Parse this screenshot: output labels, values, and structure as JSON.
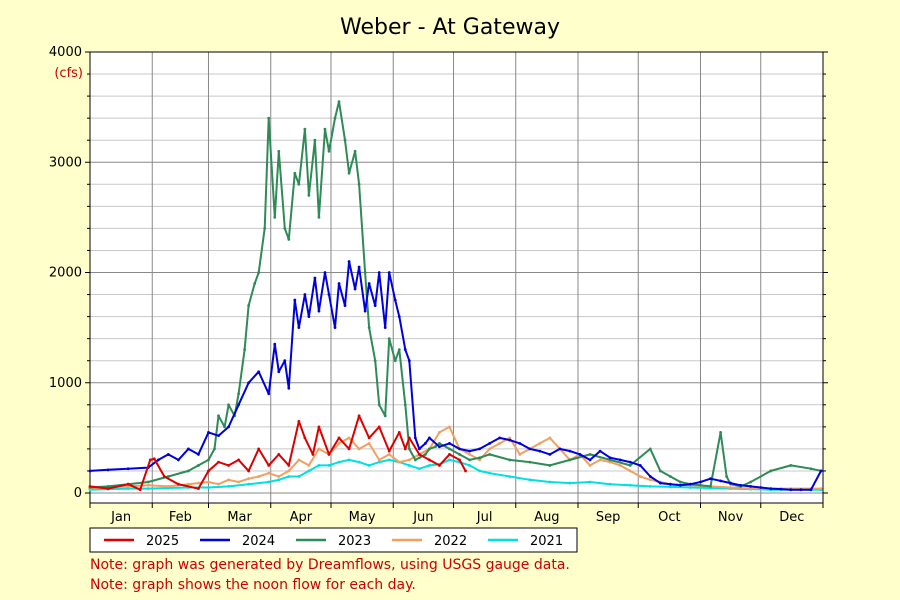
{
  "chart_data": {
    "type": "line",
    "title": "Weber - At Gateway",
    "ylabel": "(cfs)",
    "xlabel": "",
    "ylim": [
      0,
      4000
    ],
    "y_ticks": [
      0,
      1000,
      2000,
      3000,
      4000
    ],
    "categories": [
      "Jan",
      "Feb",
      "Mar",
      "Apr",
      "May",
      "Jun",
      "Jul",
      "Aug",
      "Sep",
      "Oct",
      "Nov",
      "Dec"
    ],
    "grid": true,
    "legend_placement": "bottom-left",
    "x_units": "day of year",
    "series": [
      {
        "name": "2025",
        "color": "#dd0000",
        "x": [
          1,
          10,
          20,
          26,
          31,
          33,
          38,
          45,
          55,
          60,
          65,
          70,
          75,
          80,
          85,
          90,
          95,
          100,
          105,
          108,
          112,
          115,
          120,
          125,
          130,
          135,
          140,
          145,
          150,
          155,
          158,
          160,
          165,
          170,
          175,
          180,
          185,
          188
        ],
        "values": [
          60,
          40,
          80,
          30,
          300,
          310,
          150,
          80,
          40,
          200,
          280,
          250,
          300,
          200,
          400,
          250,
          350,
          250,
          650,
          500,
          350,
          600,
          350,
          500,
          400,
          700,
          500,
          600,
          380,
          550,
          400,
          500,
          350,
          300,
          250,
          350,
          300,
          200
        ]
      },
      {
        "name": "2024",
        "color": "#0000dd",
        "x": [
          1,
          10,
          20,
          30,
          35,
          40,
          45,
          50,
          55,
          60,
          65,
          70,
          75,
          80,
          85,
          90,
          93,
          95,
          98,
          100,
          103,
          105,
          108,
          110,
          113,
          115,
          118,
          120,
          123,
          125,
          128,
          130,
          133,
          135,
          138,
          140,
          143,
          145,
          148,
          150,
          153,
          155,
          158,
          160,
          163,
          165,
          168,
          170,
          175,
          180,
          185,
          190,
          195,
          200,
          205,
          210,
          215,
          220,
          225,
          230,
          235,
          240,
          245,
          250,
          255,
          260,
          265,
          270,
          275,
          280,
          285,
          290,
          295,
          300,
          305,
          310,
          315,
          320,
          325,
          330,
          335,
          340,
          345,
          350,
          355,
          360,
          365
        ],
        "values": [
          200,
          210,
          220,
          230,
          300,
          350,
          300,
          400,
          350,
          550,
          520,
          600,
          800,
          1000,
          1100,
          900,
          1350,
          1100,
          1200,
          950,
          1750,
          1500,
          1800,
          1600,
          1950,
          1650,
          2000,
          1800,
          1500,
          1900,
          1700,
          2100,
          1850,
          2050,
          1650,
          1900,
          1700,
          2000,
          1500,
          2000,
          1750,
          1600,
          1300,
          1200,
          500,
          400,
          450,
          500,
          420,
          450,
          400,
          380,
          400,
          450,
          500,
          480,
          450,
          400,
          380,
          350,
          400,
          380,
          350,
          300,
          380,
          320,
          300,
          280,
          250,
          150,
          90,
          80,
          70,
          80,
          100,
          130,
          110,
          90,
          70,
          60,
          50,
          40,
          35,
          30,
          30,
          30,
          200
        ]
      },
      {
        "name": "2023",
        "color": "#2e8b57",
        "x": [
          1,
          10,
          20,
          30,
          40,
          50,
          55,
          60,
          63,
          65,
          68,
          70,
          73,
          75,
          78,
          80,
          83,
          85,
          88,
          90,
          93,
          95,
          98,
          100,
          103,
          105,
          108,
          110,
          113,
          115,
          118,
          120,
          123,
          125,
          128,
          130,
          133,
          135,
          138,
          140,
          143,
          145,
          148,
          150,
          153,
          155,
          158,
          160,
          163,
          165,
          168,
          170,
          173,
          175,
          180,
          185,
          190,
          195,
          200,
          210,
          220,
          230,
          240,
          250,
          260,
          270,
          280,
          285,
          290,
          295,
          300,
          305,
          310,
          315,
          318,
          320,
          325,
          330,
          340,
          350,
          360,
          365
        ],
        "values": [
          50,
          60,
          80,
          100,
          150,
          200,
          250,
          300,
          400,
          700,
          600,
          800,
          700,
          900,
          1300,
          1700,
          1900,
          2000,
          2400,
          3400,
          2500,
          3100,
          2400,
          2300,
          2900,
          2800,
          3300,
          2700,
          3200,
          2500,
          3300,
          3100,
          3400,
          3550,
          3200,
          2900,
          3100,
          2800,
          2000,
          1500,
          1200,
          800,
          700,
          1400,
          1200,
          1300,
          800,
          400,
          300,
          320,
          350,
          400,
          420,
          450,
          400,
          350,
          300,
          320,
          350,
          300,
          280,
          250,
          300,
          350,
          300,
          250,
          400,
          200,
          150,
          100,
          80,
          70,
          60,
          550,
          150,
          80,
          60,
          100,
          200,
          250,
          220,
          200
        ]
      },
      {
        "name": "2022",
        "color": "#f0a060",
        "x": [
          1,
          10,
          20,
          30,
          40,
          50,
          55,
          60,
          65,
          70,
          75,
          80,
          85,
          90,
          95,
          100,
          105,
          110,
          115,
          120,
          125,
          130,
          135,
          140,
          145,
          150,
          155,
          160,
          165,
          170,
          175,
          180,
          185,
          190,
          195,
          200,
          205,
          210,
          215,
          220,
          225,
          230,
          235,
          240,
          245,
          250,
          255,
          260,
          265,
          270,
          275,
          280,
          285,
          290,
          300,
          310,
          320,
          330,
          340,
          350,
          360,
          365
        ],
        "values": [
          40,
          50,
          60,
          70,
          60,
          80,
          90,
          100,
          80,
          120,
          100,
          130,
          150,
          180,
          150,
          200,
          300,
          250,
          400,
          350,
          450,
          500,
          400,
          450,
          300,
          350,
          280,
          300,
          350,
          400,
          550,
          600,
          400,
          350,
          300,
          400,
          450,
          500,
          350,
          400,
          450,
          500,
          400,
          300,
          350,
          250,
          300,
          280,
          250,
          200,
          150,
          120,
          100,
          80,
          70,
          60,
          50,
          40,
          40,
          40,
          40,
          40
        ]
      },
      {
        "name": "2021",
        "color": "#00e0e0",
        "x": [
          1,
          10,
          20,
          30,
          40,
          50,
          60,
          70,
          80,
          90,
          95,
          100,
          105,
          110,
          115,
          120,
          125,
          130,
          135,
          140,
          145,
          150,
          155,
          160,
          165,
          170,
          175,
          180,
          185,
          190,
          195,
          200,
          210,
          220,
          230,
          240,
          250,
          260,
          270,
          280,
          290,
          300,
          310,
          320,
          330,
          340,
          350,
          360,
          365
        ],
        "values": [
          30,
          35,
          40,
          40,
          45,
          50,
          50,
          60,
          80,
          100,
          120,
          150,
          150,
          200,
          250,
          250,
          280,
          300,
          280,
          250,
          280,
          300,
          280,
          250,
          220,
          250,
          260,
          300,
          280,
          250,
          200,
          180,
          150,
          120,
          100,
          90,
          100,
          80,
          70,
          60,
          55,
          50,
          45,
          40,
          35,
          30,
          30,
          30,
          30
        ]
      }
    ]
  },
  "notes": [
    "Note: graph was generated by Dreamflows, using USGS gauge data.",
    "Note: graph shows the noon flow for each day."
  ]
}
